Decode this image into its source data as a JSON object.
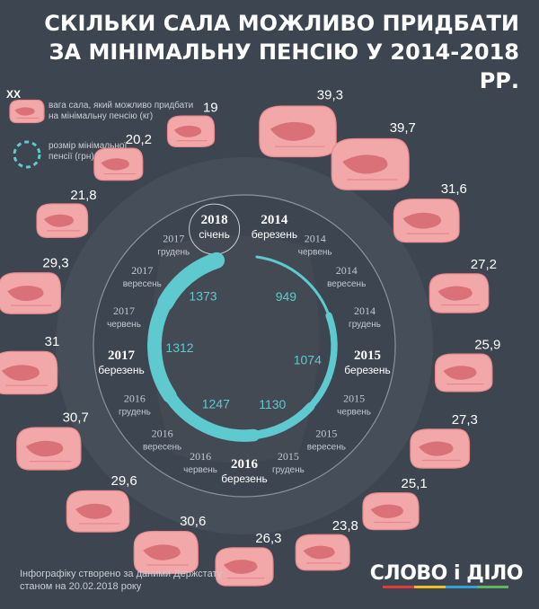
{
  "header": {
    "title_line1": "СКІЛЬКИ САЛА МОЖЛИВО ПРИДБАТИ",
    "title_line2": "ЗА МІНІМАЛЬНУ ПЕНСІЮ У 2014-2018 РР."
  },
  "legend": {
    "xx": "XX",
    "weight_line1": "вага сала, який можливо придбати",
    "weight_line2": "на мінімальну пенсію (кг)",
    "pension_line1": "розмір мінімальної",
    "pension_line2": "пенсії (грн)"
  },
  "footer": {
    "line1": "Інфографіку створено за даними Держстату",
    "line2": "станом на 20.02.2018 року",
    "logo": "СЛОВО і ДІЛО"
  },
  "colors": {
    "background": "#3d4550",
    "lard": "#f2a7a8",
    "pension": "#5ec9cf"
  },
  "chart_data": {
    "type": "radial",
    "periods": [
      {
        "year": "2014",
        "month": "березень",
        "kg": 39.3
      },
      {
        "year": "2014",
        "month": "червень",
        "kg": 39.7
      },
      {
        "year": "2014",
        "month": "вересень",
        "kg": 31.6
      },
      {
        "year": "2014",
        "month": "грудень",
        "kg": 27.2
      },
      {
        "year": "2015",
        "month": "березень",
        "kg": 25.9
      },
      {
        "year": "2015",
        "month": "червень",
        "kg": 27.3
      },
      {
        "year": "2015",
        "month": "вересень",
        "kg": 25.1
      },
      {
        "year": "2015",
        "month": "грудень",
        "kg": 23.8
      },
      {
        "year": "2016",
        "month": "березень",
        "kg": 26.3
      },
      {
        "year": "2016",
        "month": "червень",
        "kg": 30.6
      },
      {
        "year": "2016",
        "month": "вересень",
        "kg": 29.6
      },
      {
        "year": "2016",
        "month": "грудень",
        "kg": 30.7
      },
      {
        "year": "2017",
        "month": "березень",
        "kg": 31
      },
      {
        "year": "2017",
        "month": "червень",
        "kg": 29.3
      },
      {
        "year": "2017",
        "month": "вересень",
        "kg": 21.8
      },
      {
        "year": "2017",
        "month": "грудень",
        "kg": 20.2
      },
      {
        "year": "2018",
        "month": "січень",
        "kg": 19
      }
    ],
    "pension_levels": [
      949,
      1074,
      1130,
      1247,
      1312,
      1373
    ]
  }
}
